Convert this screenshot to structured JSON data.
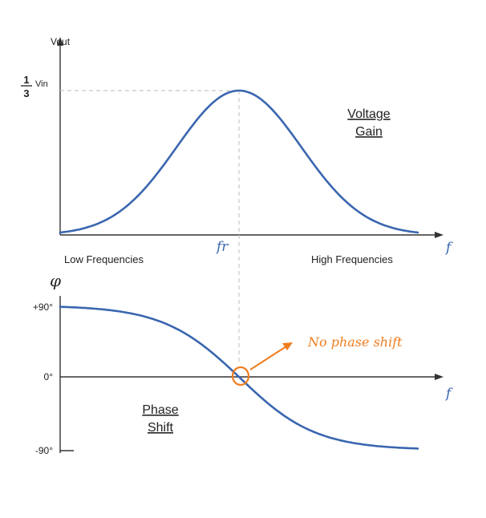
{
  "gain_plot": {
    "y_axis_label": "Vout",
    "max_fraction_num": "1",
    "max_fraction_den": "3",
    "max_suffix": "Vin",
    "x_axis_symbol": "f",
    "resonance_label": "fr",
    "title_line1": "Voltage",
    "title_line2": "Gain",
    "low_label": "Low Frequencies",
    "high_label": "High Frequencies"
  },
  "phase_plot": {
    "y_axis_symbol": "φ",
    "tick_plus": "+90°",
    "tick_zero": "0°",
    "tick_minus": "-90°",
    "x_axis_symbol": "f",
    "title_line1": "Phase",
    "title_line2": "Shift"
  },
  "annotation": {
    "text": "No phase shift"
  },
  "colors": {
    "curve": "#3a66b0",
    "axis": "#333333",
    "guide": "#c8c8c8",
    "annotation": "#f07d1e",
    "italic_symbol": "#3a66b0"
  }
}
